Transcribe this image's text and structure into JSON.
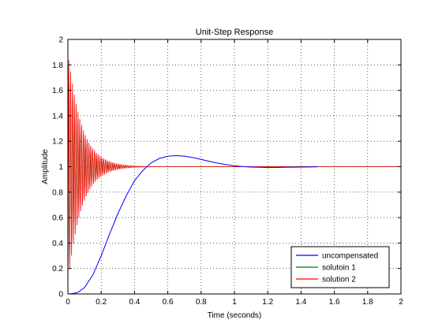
{
  "chart_data": {
    "type": "line",
    "title": "Unit-Step Response",
    "xlabel": "Time (seconds)",
    "ylabel": "Amplitude",
    "xlim": [
      0,
      2
    ],
    "ylim": [
      0,
      2
    ],
    "xticks": [
      0,
      0.2,
      0.4,
      0.6,
      0.8,
      1,
      1.2,
      1.4,
      1.6,
      1.8,
      2
    ],
    "xtick_labels": [
      "0",
      "0.2",
      "0.4",
      "0.6",
      "0.8",
      "1",
      "1.2",
      "1.4",
      "1.6",
      "1.8",
      "2"
    ],
    "yticks": [
      0,
      0.2,
      0.4,
      0.6,
      0.8,
      1,
      1.2,
      1.4,
      1.6,
      1.8,
      2
    ],
    "ytick_labels": [
      "0",
      "0.2",
      "0.4",
      "0.6",
      "0.8",
      "1",
      "1.2",
      "1.4",
      "1.6",
      "1.8",
      "2"
    ],
    "grid": true,
    "grid_style": "dotted",
    "legend_position": "bottom-right",
    "series": [
      {
        "name": "uncompensated",
        "color": "#0000ff",
        "x": [
          0,
          0.03,
          0.06,
          0.1,
          0.15,
          0.2,
          0.25,
          0.3,
          0.35,
          0.4,
          0.45,
          0.5,
          0.55,
          0.6,
          0.65,
          0.7,
          0.75,
          0.8,
          0.85,
          0.9,
          0.95,
          1.0,
          1.05,
          1.1,
          1.15,
          1.2,
          1.25,
          1.3,
          1.35,
          1.4,
          1.45,
          1.5
        ],
        "y": [
          0,
          0.003,
          0.012,
          0.05,
          0.15,
          0.3,
          0.47,
          0.63,
          0.77,
          0.89,
          0.97,
          1.03,
          1.065,
          1.082,
          1.087,
          1.083,
          1.072,
          1.057,
          1.042,
          1.028,
          1.016,
          1.007,
          1.001,
          0.997,
          0.995,
          0.994,
          0.994,
          0.995,
          0.996,
          0.997,
          0.998,
          0.999
        ]
      },
      {
        "name": "solutoin 1",
        "color": "#008000",
        "x": [
          0,
          2
        ],
        "y": [
          0,
          1
        ],
        "osc_period": 0.011,
        "osc_amp": 0.75,
        "osc_decay_time": 0.08
      },
      {
        "name": "solution 2",
        "color": "#ff0000",
        "x": [
          0,
          2
        ],
        "y": [
          0,
          1
        ],
        "osc_period": 0.011,
        "osc_amp": 0.92,
        "osc_decay_time": 0.08
      }
    ]
  }
}
